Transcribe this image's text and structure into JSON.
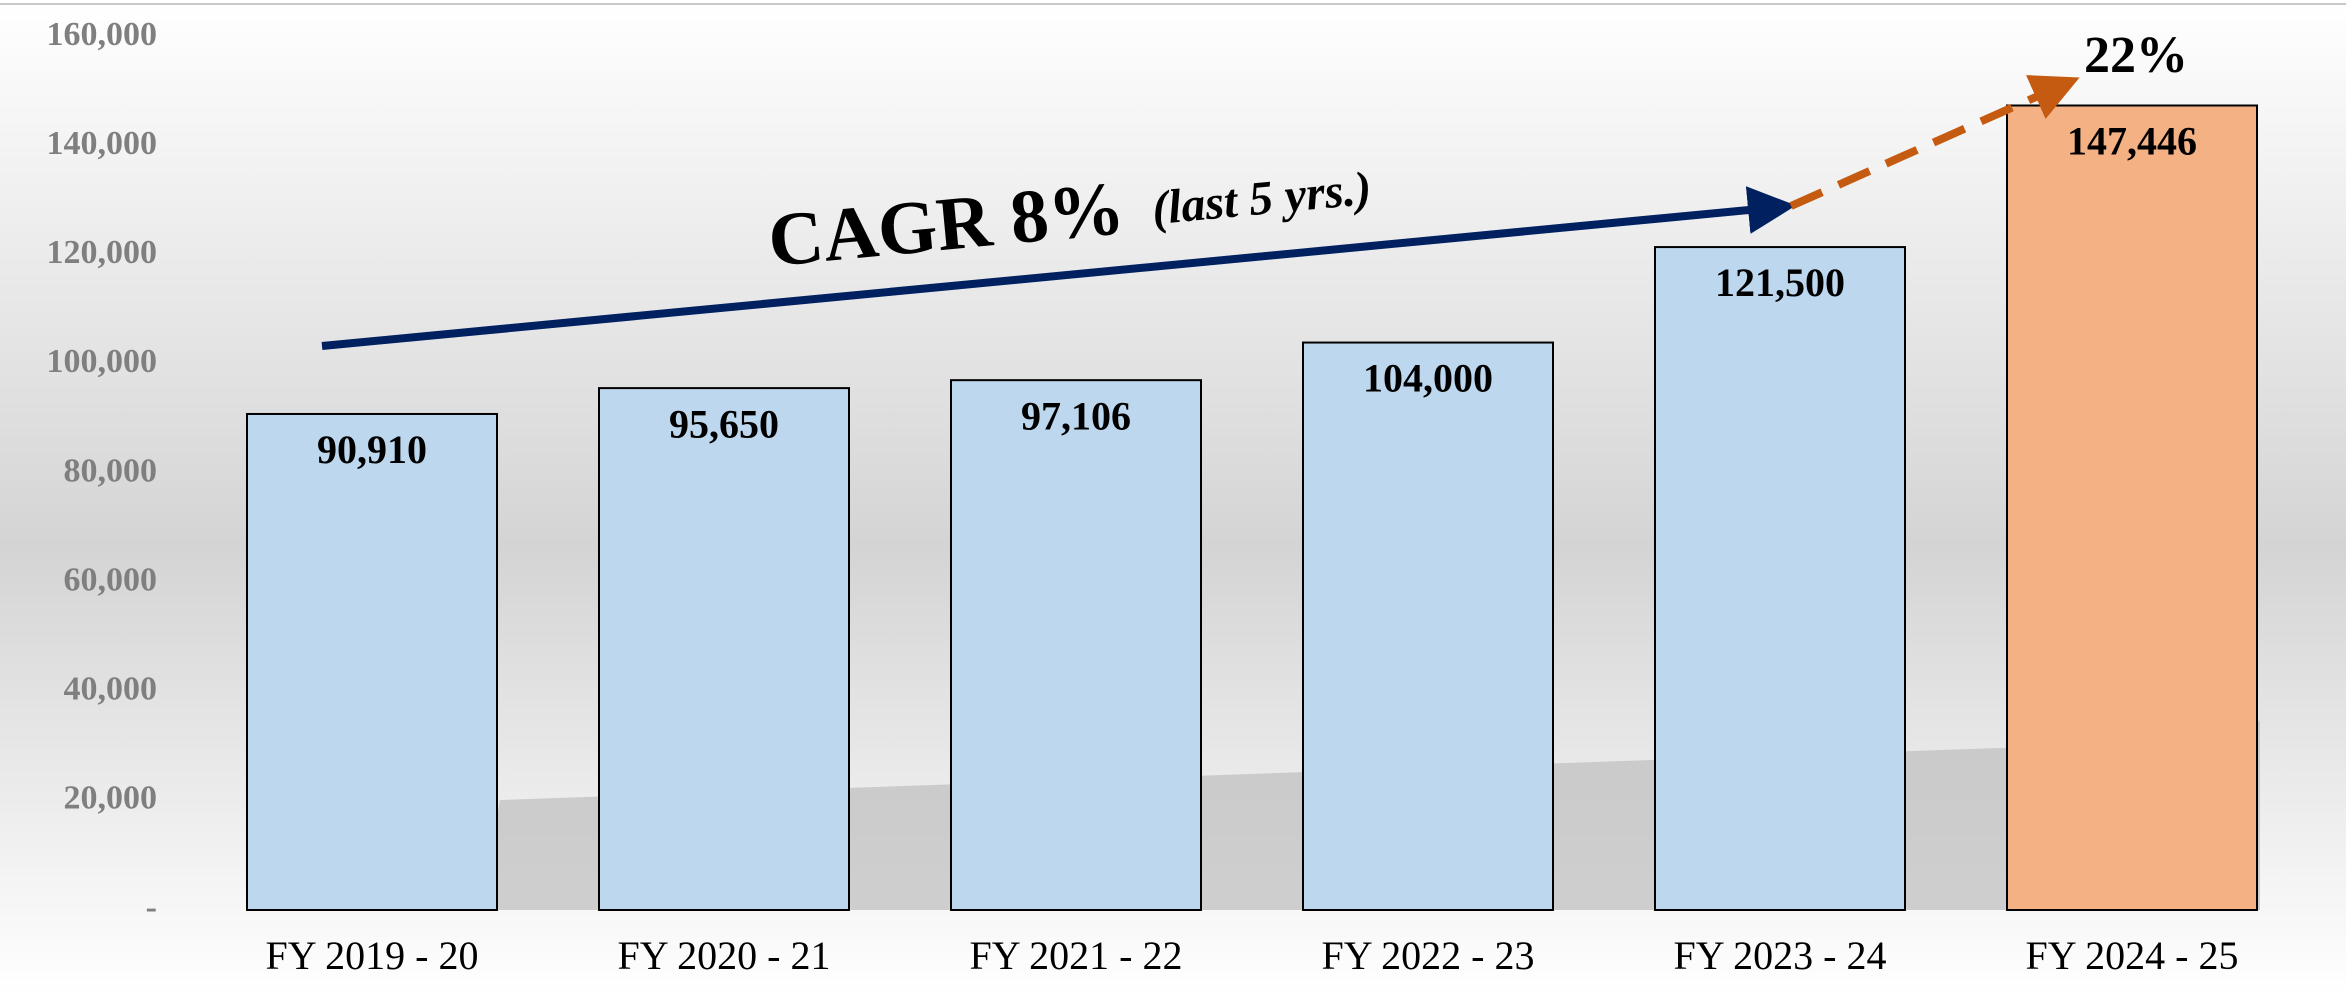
{
  "chart_data": {
    "type": "bar",
    "categories": [
      "FY 2019 - 20",
      "FY 2020 - 21",
      "FY 2021 - 22",
      "FY 2022 - 23",
      "FY  2023 - 24",
      "FY 2024 - 25"
    ],
    "values": [
      90910,
      95650,
      97106,
      104000,
      121500,
      147446
    ],
    "value_labels": [
      "90,910",
      "95,650",
      "97,106",
      "104,000",
      "121,500",
      "147,446"
    ],
    "colors": [
      "#bdd7ee",
      "#bdd7ee",
      "#bdd7ee",
      "#bdd7ee",
      "#bdd7ee",
      "#f4b183"
    ],
    "ylim": [
      0,
      160000
    ],
    "yticks": [
      {
        "value": 0,
        "label": "-"
      },
      {
        "value": 20000,
        "label": "20,000"
      },
      {
        "value": 40000,
        "label": "40,000"
      },
      {
        "value": 60000,
        "label": "60,000"
      },
      {
        "value": 80000,
        "label": "80,000"
      },
      {
        "value": 100000,
        "label": "100,000"
      },
      {
        "value": 120000,
        "label": "120,000"
      },
      {
        "value": 140000,
        "label": "140,000"
      },
      {
        "value": 160000,
        "label": "160,000"
      }
    ],
    "annotations": [
      "CAGR 8%",
      "(last 5 yrs.)",
      "22%"
    ],
    "grid": false
  }
}
